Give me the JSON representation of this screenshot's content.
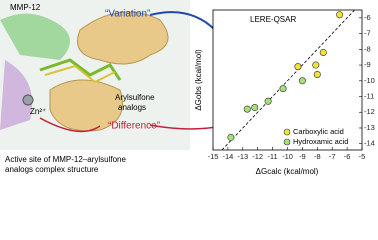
{
  "left": {
    "protein_label": "MMP-12",
    "zinc_label": "Zn²⁺",
    "ligand_label": [
      "Arylsulfone",
      "analogs"
    ],
    "variation": "“Variation”",
    "difference": "“Difference”",
    "caption": [
      "Active site of MMP-12–arylsulfone",
      "analogs complex structure"
    ]
  },
  "chart_data": {
    "type": "scatter",
    "title": "LERE-QSAR",
    "x_label": "ΔGcalc (kcal/mol)",
    "y_label": "ΔGobs (kcal/mol)",
    "xlim": [
      -15,
      -5
    ],
    "ylim": [
      -14.4,
      -5.5
    ],
    "xticks": [
      -15,
      -14,
      -13,
      -12,
      -11,
      -10,
      -9,
      -8,
      -7,
      -6,
      -5
    ],
    "yticks": [
      -14,
      -13,
      -12,
      -11,
      -10,
      -9,
      -8,
      -7,
      -6
    ],
    "legend": "lower right",
    "series": [
      {
        "name": "Carboxylic acid",
        "color": "#f2e23a",
        "x": [
          -6.5,
          -7.6,
          -8.0,
          -9.3,
          -8.1
        ],
        "values": [
          -5.8,
          -8.2,
          -9.6,
          -9.1,
          -9.0
        ]
      },
      {
        "name": "Hydroxamic acid",
        "color": "#a6e07a",
        "x": [
          -13.8,
          -12.7,
          -12.2,
          -11.3,
          -10.3,
          -9.0
        ],
        "values": [
          -13.6,
          -11.8,
          -11.7,
          -11.3,
          -10.5,
          -10.0
        ]
      }
    ]
  }
}
